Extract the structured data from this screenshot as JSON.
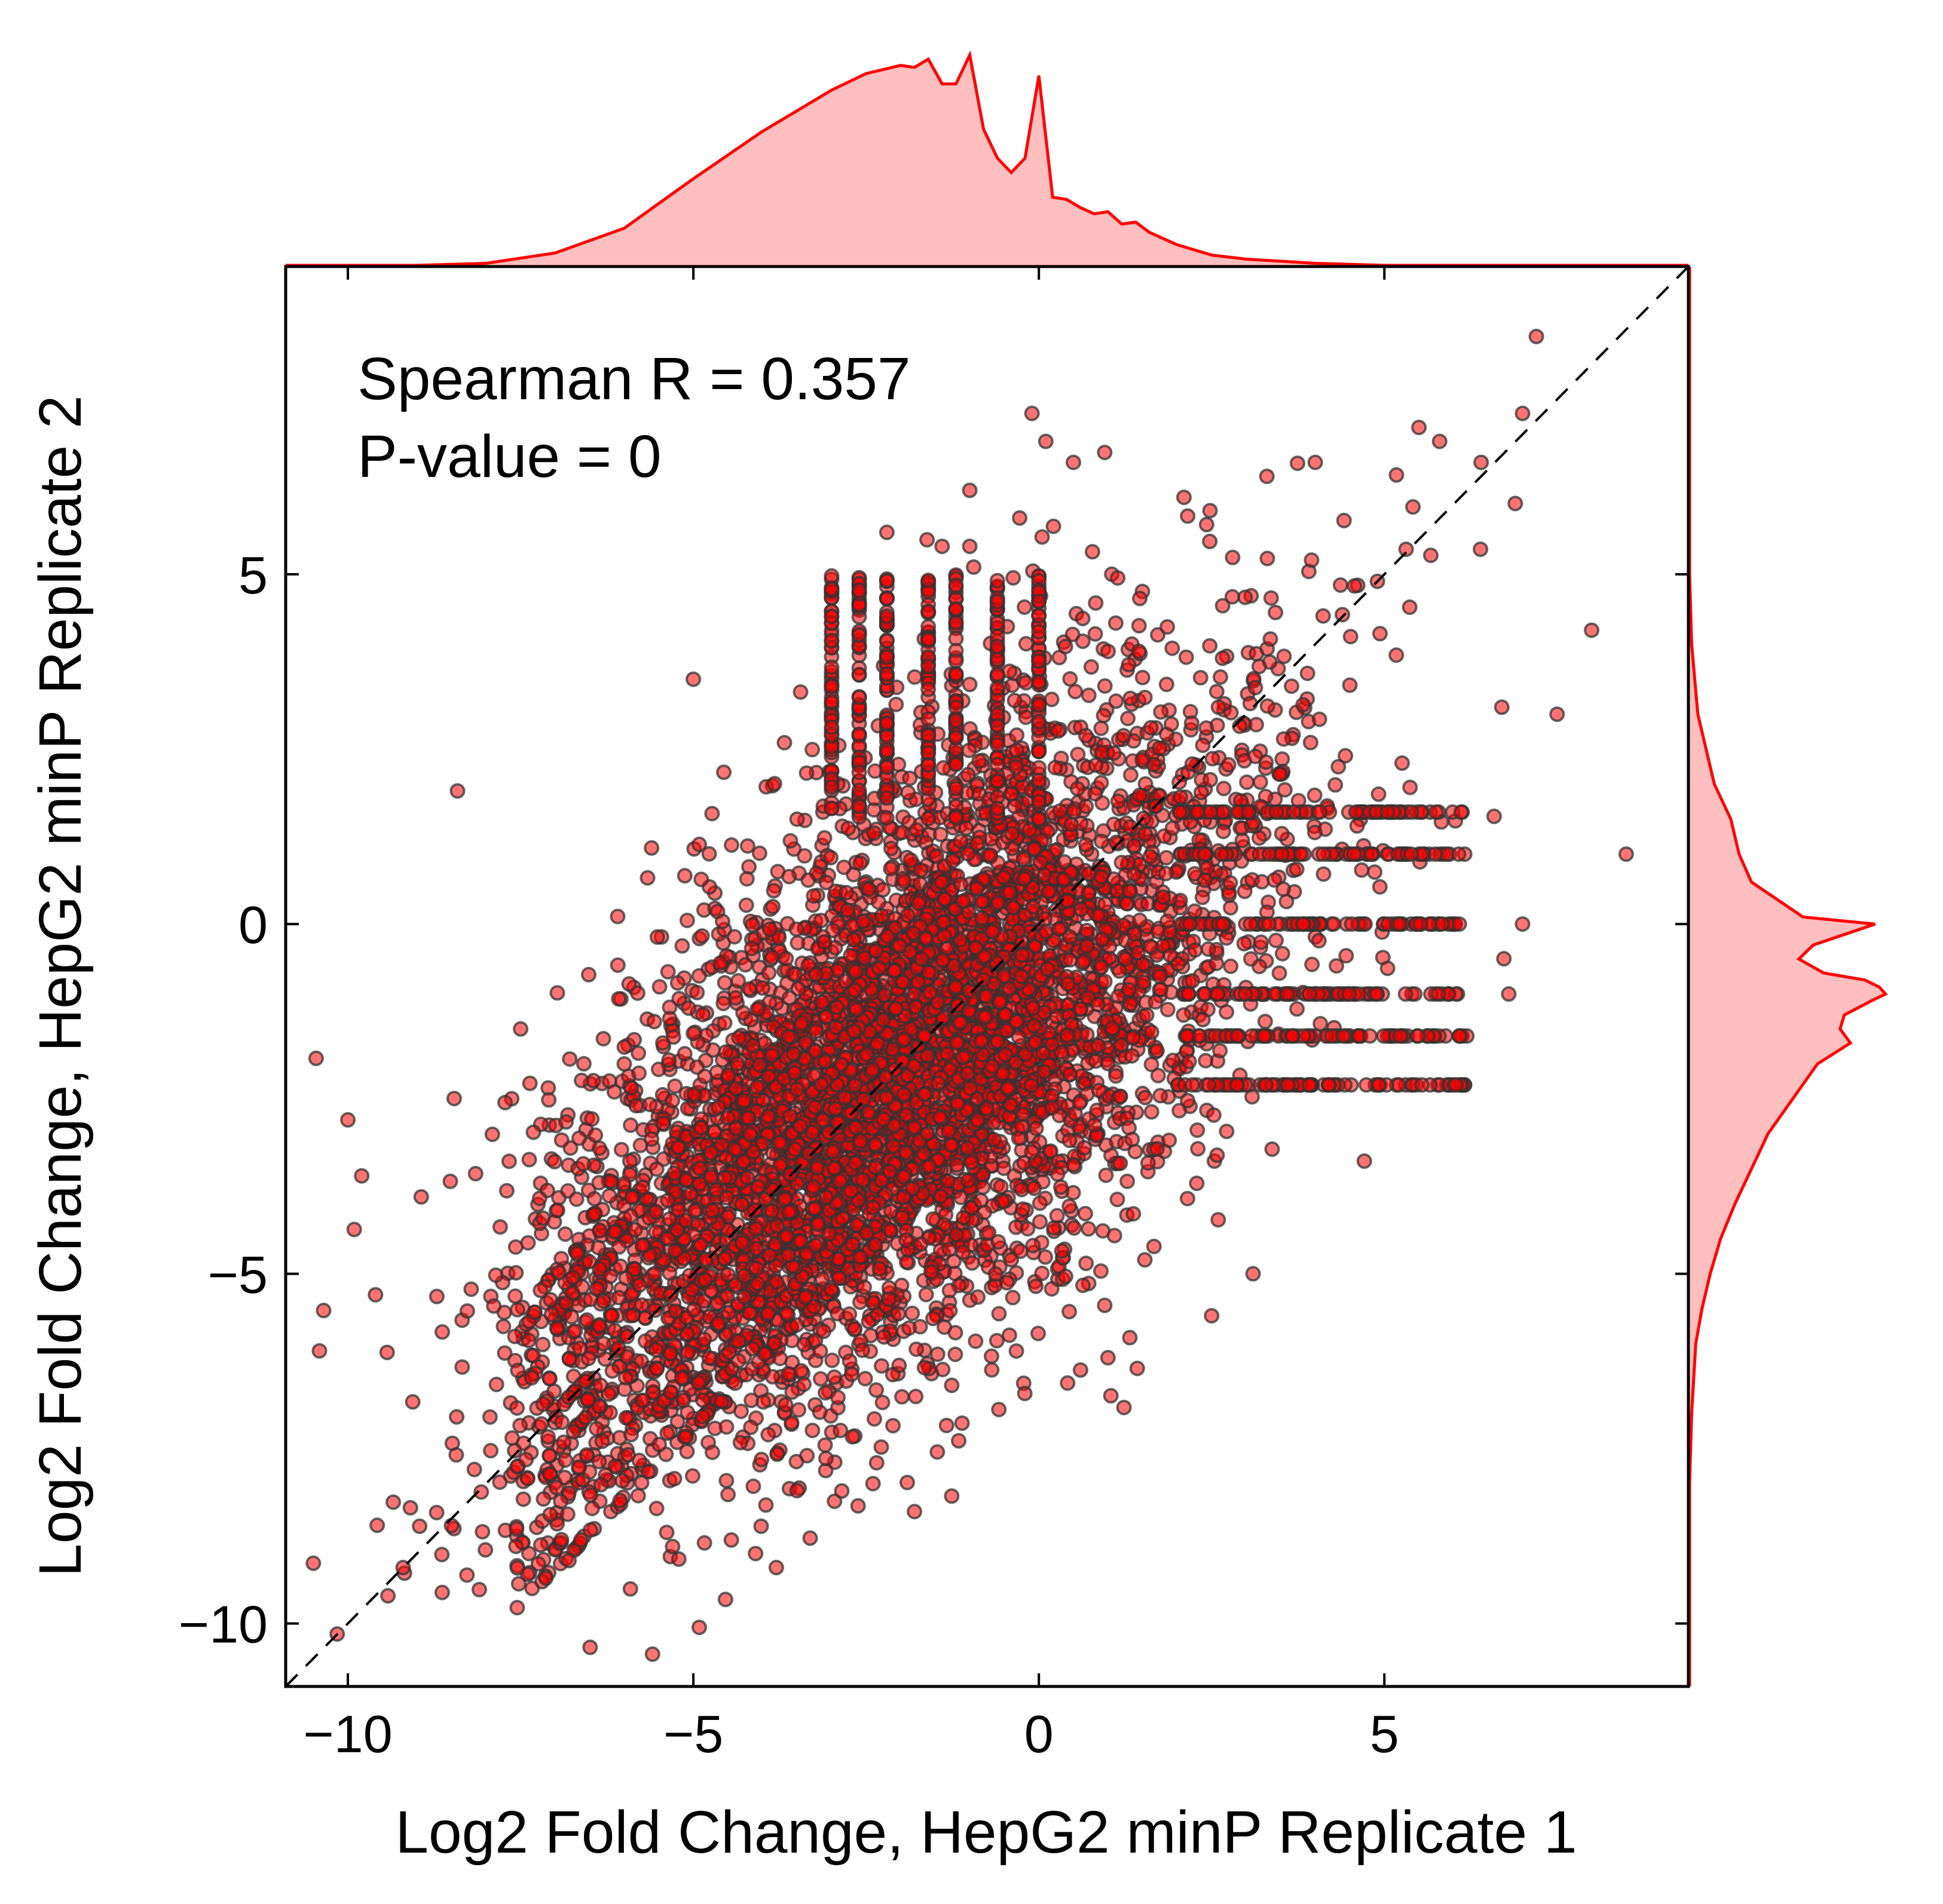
{
  "chart_data": {
    "type": "scatter",
    "xlabel": "Log2 Fold Change, HepG2 minP Replicate 1",
    "ylabel": "Log2 Fold Change, HepG2 minP Replicate 2",
    "xlim": [
      -10.9,
      9.4
    ],
    "ylim": [
      -10.9,
      9.4
    ],
    "x_ticks": [
      -10,
      -5,
      0,
      5
    ],
    "y_ticks": [
      -10,
      -5,
      0,
      5
    ],
    "x_tick_labels": [
      "−10",
      "−5",
      "0",
      "5"
    ],
    "y_tick_labels": [
      "−10",
      "−5",
      "0",
      "5"
    ],
    "annotations": [
      "Spearman R = 0.357",
      "P-value = 0"
    ],
    "grid": false,
    "reference_line": {
      "slope": 1,
      "intercept": 0,
      "style": "dashed",
      "color": "#000000"
    },
    "point_color": "#ff0000",
    "point_edge_color": "#333333",
    "series": [
      {
        "type": "scatter",
        "cloud": {
          "center": [
            -1.8,
            -2.0
          ],
          "spread": [
            2.5,
            2.6
          ],
          "correlation": 0.357
        },
        "sample_points": [
          [
            7.2,
            8.4
          ],
          [
            7.0,
            7.3
          ],
          [
            5.5,
            7.1
          ],
          [
            5.8,
            6.9
          ],
          [
            6.4,
            6.6
          ],
          [
            4.0,
            6.6
          ],
          [
            3.3,
            6.4
          ],
          [
            -0.1,
            7.3
          ],
          [
            0.5,
            6.6
          ],
          [
            0.1,
            6.9
          ],
          [
            -1.0,
            6.2
          ],
          [
            -2.2,
            5.6
          ],
          [
            -1.4,
            5.4
          ],
          [
            -1.0,
            5.4
          ],
          [
            8.0,
            4.2
          ],
          [
            6.7,
            3.1
          ],
          [
            7.5,
            3.0
          ],
          [
            8.5,
            1.0
          ],
          [
            7.0,
            0.0
          ],
          [
            6.8,
            -1.0
          ],
          [
            -10.0,
            -2.8
          ],
          [
            -9.8,
            -3.6
          ],
          [
            -9.6,
            -5.3
          ],
          [
            -9.2,
            -9.2
          ],
          [
            -8.5,
            -8.6
          ],
          [
            -6.8,
            -9.1
          ],
          [
            -5.3,
            -8.9
          ],
          [
            -3.8,
            -9.2
          ],
          [
            -4.1,
            -9.0
          ],
          [
            -3.5,
            -8.1
          ],
          [
            -2.4,
            -8.0
          ],
          [
            -1.8,
            -8.4
          ],
          [
            1.0,
            -6.2
          ],
          [
            3.1,
            -5.0
          ],
          [
            2.5,
            -5.6
          ],
          [
            -7.5,
            -1.5
          ],
          [
            -5.0,
            3.5
          ],
          [
            -3.0,
            4.4
          ],
          [
            2.1,
            6.1
          ],
          [
            4.9,
            4.9
          ],
          [
            2.4,
            1.0
          ],
          [
            -3.5,
            1.5
          ],
          [
            -6.0,
            -2.0
          ]
        ]
      }
    ],
    "marginal_x": {
      "type": "area",
      "color": "#ff0000",
      "fill": "#ffbfbf",
      "x": [
        -10.9,
        -9.0,
        -8.0,
        -7.0,
        -6.0,
        -5.0,
        -4.0,
        -3.0,
        -2.5,
        -2.0,
        -1.8,
        -1.6,
        -1.4,
        -1.2,
        -1.0,
        -0.8,
        -0.6,
        -0.4,
        -0.2,
        0.0,
        0.2,
        0.4,
        0.6,
        0.8,
        1.0,
        1.2,
        1.4,
        1.6,
        2.0,
        2.5,
        3.0,
        4.0,
        5.0,
        6.0,
        7.0,
        9.4
      ],
      "y": [
        0.0,
        0.0,
        0.01,
        0.06,
        0.18,
        0.42,
        0.65,
        0.85,
        0.93,
        0.97,
        0.96,
        1.0,
        0.88,
        0.88,
        1.02,
        0.66,
        0.52,
        0.45,
        0.52,
        0.92,
        0.33,
        0.32,
        0.28,
        0.25,
        0.26,
        0.2,
        0.21,
        0.16,
        0.1,
        0.05,
        0.03,
        0.01,
        0.0,
        0.0,
        0.0,
        0.0
      ]
    },
    "marginal_y": {
      "type": "area",
      "color": "#ff0000",
      "fill": "#ffbfbf",
      "y": [
        9.4,
        5.0,
        4.0,
        3.0,
        2.0,
        1.5,
        1.0,
        0.6,
        0.3,
        0.1,
        0.0,
        -0.3,
        -0.5,
        -0.7,
        -0.8,
        -0.9,
        -1.0,
        -1.1,
        -1.3,
        -1.5,
        -1.7,
        -2.0,
        -2.5,
        -3.0,
        -3.5,
        -4.0,
        -4.5,
        -5.0,
        -5.5,
        -6.0,
        -7.0,
        -8.0,
        -10.9
      ],
      "x": [
        0.0,
        0.0,
        0.01,
        0.04,
        0.12,
        0.2,
        0.24,
        0.3,
        0.45,
        0.55,
        0.9,
        0.6,
        0.53,
        0.65,
        0.85,
        0.92,
        0.95,
        0.88,
        0.75,
        0.73,
        0.78,
        0.62,
        0.5,
        0.38,
        0.3,
        0.22,
        0.15,
        0.1,
        0.06,
        0.03,
        0.01,
        0.0,
        0.0
      ]
    }
  }
}
